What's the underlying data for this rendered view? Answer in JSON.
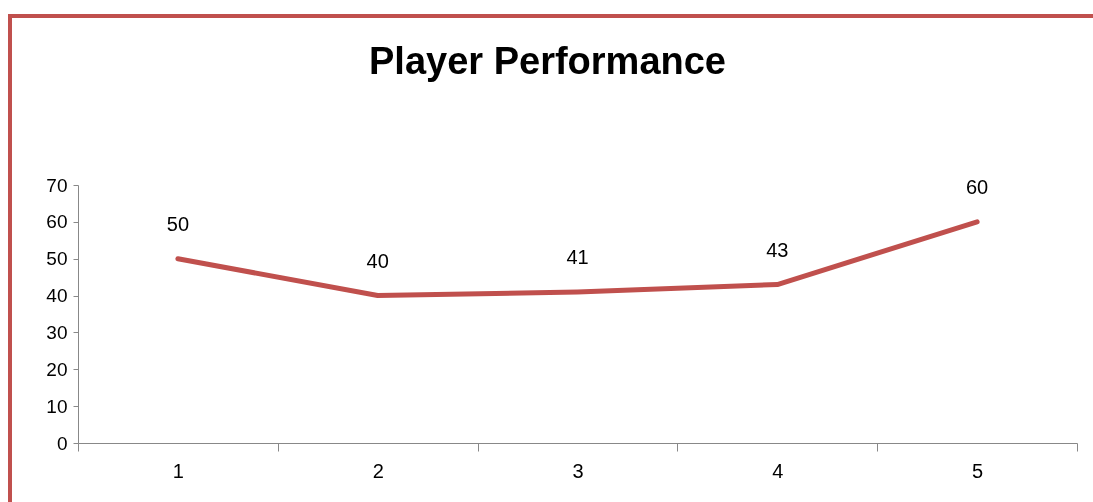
{
  "chart_data": {
    "type": "line",
    "title": "Player Performance",
    "categories": [
      "1",
      "2",
      "3",
      "4",
      "5"
    ],
    "series": [
      {
        "color": "#c0504d",
        "values": [
          50,
          40,
          41,
          43,
          60
        ]
      }
    ],
    "ylim": [
      0,
      70
    ],
    "yticks": [
      0,
      10,
      20,
      30,
      40,
      50,
      60,
      70
    ],
    "grid": false,
    "legend": false,
    "data_labels": true,
    "marker": "none",
    "line_style": "solid"
  }
}
